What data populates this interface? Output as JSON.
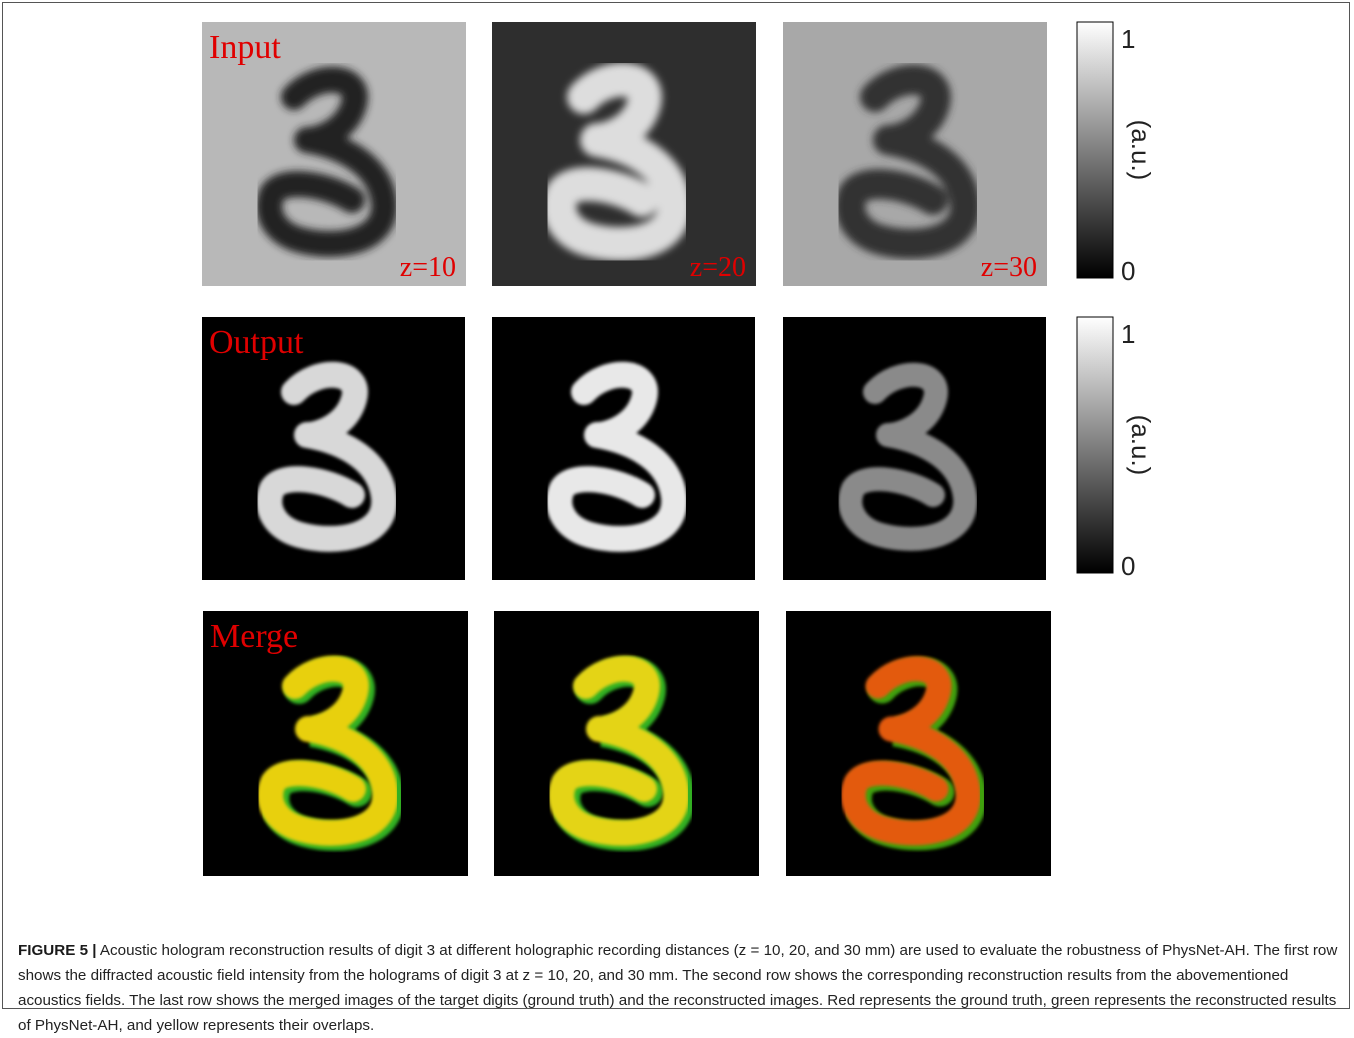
{
  "figure": {
    "rows": [
      {
        "label": "Input",
        "panels": [
          "z=10",
          "z=20",
          "z=30"
        ],
        "colorbar": {
          "ticks": [
            1,
            0
          ],
          "label": "(a.u.)"
        }
      },
      {
        "label": "Output",
        "colorbar": {
          "ticks": [
            1,
            0
          ],
          "label": "(a.u.)"
        }
      },
      {
        "label": "Merge"
      }
    ],
    "caption": {
      "label": "FIGURE 5 |",
      "text": "Acoustic hologram reconstruction results of digit 3 at different holographic recording distances (z = 10, 20, and 30 mm) are used to evaluate the robustness of PhysNet-AH. The first row shows the diffracted acoustic field intensity from the holograms of digit 3 at z = 10, 20, and 30 mm. The second row shows the corresponding reconstruction results from the abovementioned acoustics fields. The last row shows the merged images of the target digits (ground truth) and the reconstructed images. Red represents the ground truth, green represents the reconstructed results of PhysNet-AH, and yellow represents their overlaps."
    }
  }
}
